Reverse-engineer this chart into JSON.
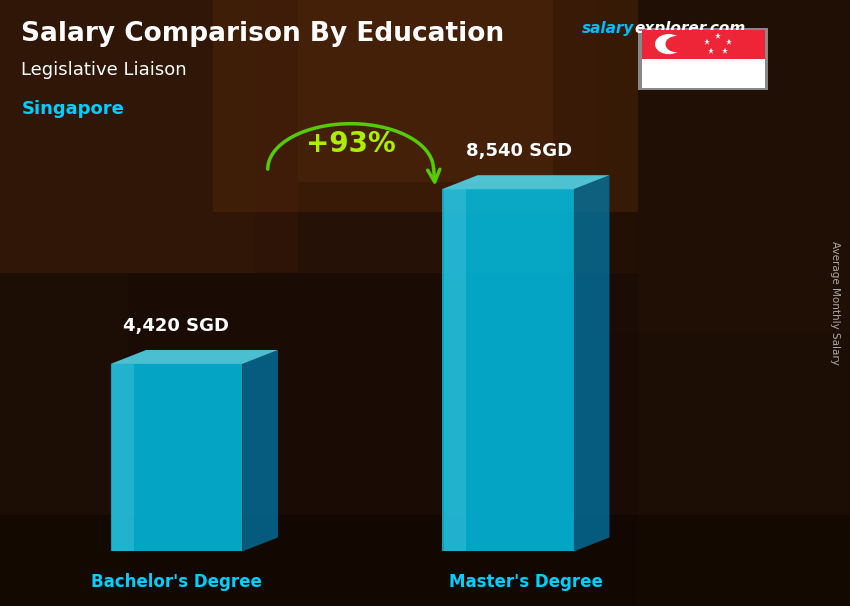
{
  "title": "Salary Comparison By Education",
  "subtitle_job": "Legislative Liaison",
  "subtitle_location": "Singapore",
  "brand_salary": "salary",
  "brand_explorer": "explorer.com",
  "ylabel": "Average Monthly Salary",
  "categories": [
    "Bachelor's Degree",
    "Master's Degree"
  ],
  "values": [
    4420,
    8540
  ],
  "value_labels": [
    "4,420 SGD",
    "8,540 SGD"
  ],
  "pct_change": "+93%",
  "bar_face_color": "#00C8F0",
  "bar_top_color": "#55E8FF",
  "bar_side_color": "#007AAA",
  "bar_alpha": 0.82,
  "bg_color": "#1C0E05",
  "title_color": "#FFFFFF",
  "subtitle_job_color": "#FFFFFF",
  "subtitle_loc_color": "#00CFFF",
  "category_color": "#00CFFF",
  "value_color": "#FFFFFF",
  "pct_color": "#AAEE00",
  "arrow_color": "#55CC00",
  "brand_salary_color": "#00BFFF",
  "brand_explorer_color": "#FFFFFF",
  "rotated_label_color": "#AAAAAA",
  "figsize": [
    8.5,
    6.06
  ],
  "dpi": 100
}
